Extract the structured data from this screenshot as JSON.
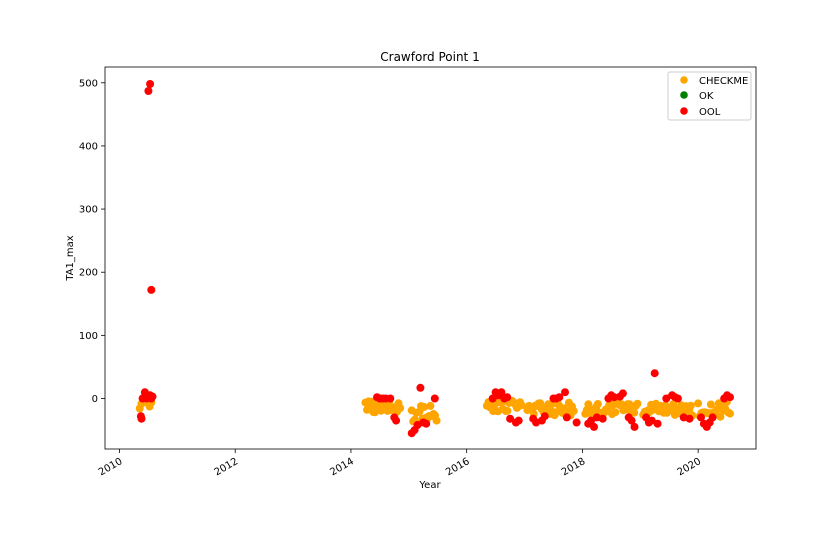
{
  "chart_data": {
    "type": "scatter",
    "title": "Crawford Point 1",
    "xlabel": "Year",
    "ylabel": "TA1_max",
    "xlim": [
      2009.75,
      2021.0
    ],
    "ylim": [
      -80,
      525
    ],
    "x_ticks": [
      2010,
      2012,
      2014,
      2016,
      2018,
      2020
    ],
    "x_tick_labels": [
      "2010",
      "2012",
      "2014",
      "2016",
      "2018",
      "2020"
    ],
    "y_ticks": [
      0,
      100,
      200,
      300,
      400,
      500
    ],
    "y_tick_labels": [
      "0",
      "100",
      "200",
      "300",
      "400",
      "500"
    ],
    "grid": false,
    "legend_position": "top-right",
    "legend": [
      "CHECKME",
      "OK",
      "OOL"
    ],
    "series": [
      {
        "name": "CHECKME",
        "color": "#ffa500",
        "bands": [
          {
            "x_start": 2010.35,
            "x_end": 2010.55,
            "y_low": -20,
            "y_high": 3
          },
          {
            "x_start": 2014.25,
            "x_end": 2014.85,
            "y_low": -28,
            "y_high": 0
          },
          {
            "x_start": 2015.05,
            "x_end": 2015.48,
            "y_low": -45,
            "y_high": -5
          },
          {
            "x_start": 2016.35,
            "x_end": 2016.95,
            "y_low": -25,
            "y_high": 0
          },
          {
            "x_start": 2017.05,
            "x_end": 2017.85,
            "y_low": -32,
            "y_high": 0
          },
          {
            "x_start": 2018.05,
            "x_end": 2018.95,
            "y_low": -35,
            "y_high": 0
          },
          {
            "x_start": 2019.05,
            "x_end": 2019.9,
            "y_low": -32,
            "y_high": 0
          },
          {
            "x_start": 2020.0,
            "x_end": 2020.55,
            "y_low": -35,
            "y_high": 0
          }
        ]
      },
      {
        "name": "OK",
        "color": "#008000",
        "points": []
      },
      {
        "name": "OOL",
        "color": "#ff0000",
        "points": [
          [
            2010.38,
            -32
          ],
          [
            2010.37,
            -28
          ],
          [
            2010.4,
            0
          ],
          [
            2010.43,
            2
          ],
          [
            2010.44,
            10
          ],
          [
            2010.47,
            0
          ],
          [
            2010.5,
            487
          ],
          [
            2010.53,
            498
          ],
          [
            2010.55,
            172
          ],
          [
            2010.53,
            5
          ],
          [
            2010.55,
            0
          ],
          [
            2010.57,
            3
          ],
          [
            2014.45,
            2
          ],
          [
            2014.5,
            0
          ],
          [
            2014.55,
            0
          ],
          [
            2014.6,
            0
          ],
          [
            2014.68,
            0
          ],
          [
            2014.75,
            -30
          ],
          [
            2014.78,
            -35
          ],
          [
            2015.05,
            -55
          ],
          [
            2015.1,
            -50
          ],
          [
            2015.15,
            -42
          ],
          [
            2015.2,
            17
          ],
          [
            2015.25,
            -38
          ],
          [
            2015.3,
            -40
          ],
          [
            2015.45,
            0
          ],
          [
            2016.45,
            0
          ],
          [
            2016.5,
            10
          ],
          [
            2016.55,
            5
          ],
          [
            2016.6,
            10
          ],
          [
            2016.65,
            0
          ],
          [
            2016.7,
            2
          ],
          [
            2016.75,
            -32
          ],
          [
            2016.85,
            -38
          ],
          [
            2016.9,
            -35
          ],
          [
            2017.15,
            -32
          ],
          [
            2017.2,
            -38
          ],
          [
            2017.3,
            -35
          ],
          [
            2017.35,
            -28
          ],
          [
            2017.5,
            0
          ],
          [
            2017.55,
            0
          ],
          [
            2017.6,
            2
          ],
          [
            2017.7,
            10
          ],
          [
            2017.73,
            -30
          ],
          [
            2017.9,
            -38
          ],
          [
            2018.1,
            -40
          ],
          [
            2018.15,
            -35
          ],
          [
            2018.2,
            -45
          ],
          [
            2018.25,
            -30
          ],
          [
            2018.35,
            -32
          ],
          [
            2018.45,
            0
          ],
          [
            2018.5,
            5
          ],
          [
            2018.55,
            2
          ],
          [
            2018.65,
            3
          ],
          [
            2018.7,
            8
          ],
          [
            2018.8,
            -30
          ],
          [
            2018.85,
            -35
          ],
          [
            2018.9,
            -45
          ],
          [
            2019.1,
            -30
          ],
          [
            2019.15,
            -38
          ],
          [
            2019.2,
            -35
          ],
          [
            2019.25,
            40
          ],
          [
            2019.3,
            -40
          ],
          [
            2019.45,
            0
          ],
          [
            2019.55,
            5
          ],
          [
            2019.6,
            2
          ],
          [
            2019.65,
            0
          ],
          [
            2019.75,
            -30
          ],
          [
            2019.85,
            -32
          ],
          [
            2020.05,
            -30
          ],
          [
            2020.1,
            -40
          ],
          [
            2020.15,
            -45
          ],
          [
            2020.2,
            -38
          ],
          [
            2020.25,
            -30
          ],
          [
            2020.45,
            0
          ],
          [
            2020.5,
            5
          ],
          [
            2020.55,
            2
          ]
        ]
      }
    ]
  }
}
